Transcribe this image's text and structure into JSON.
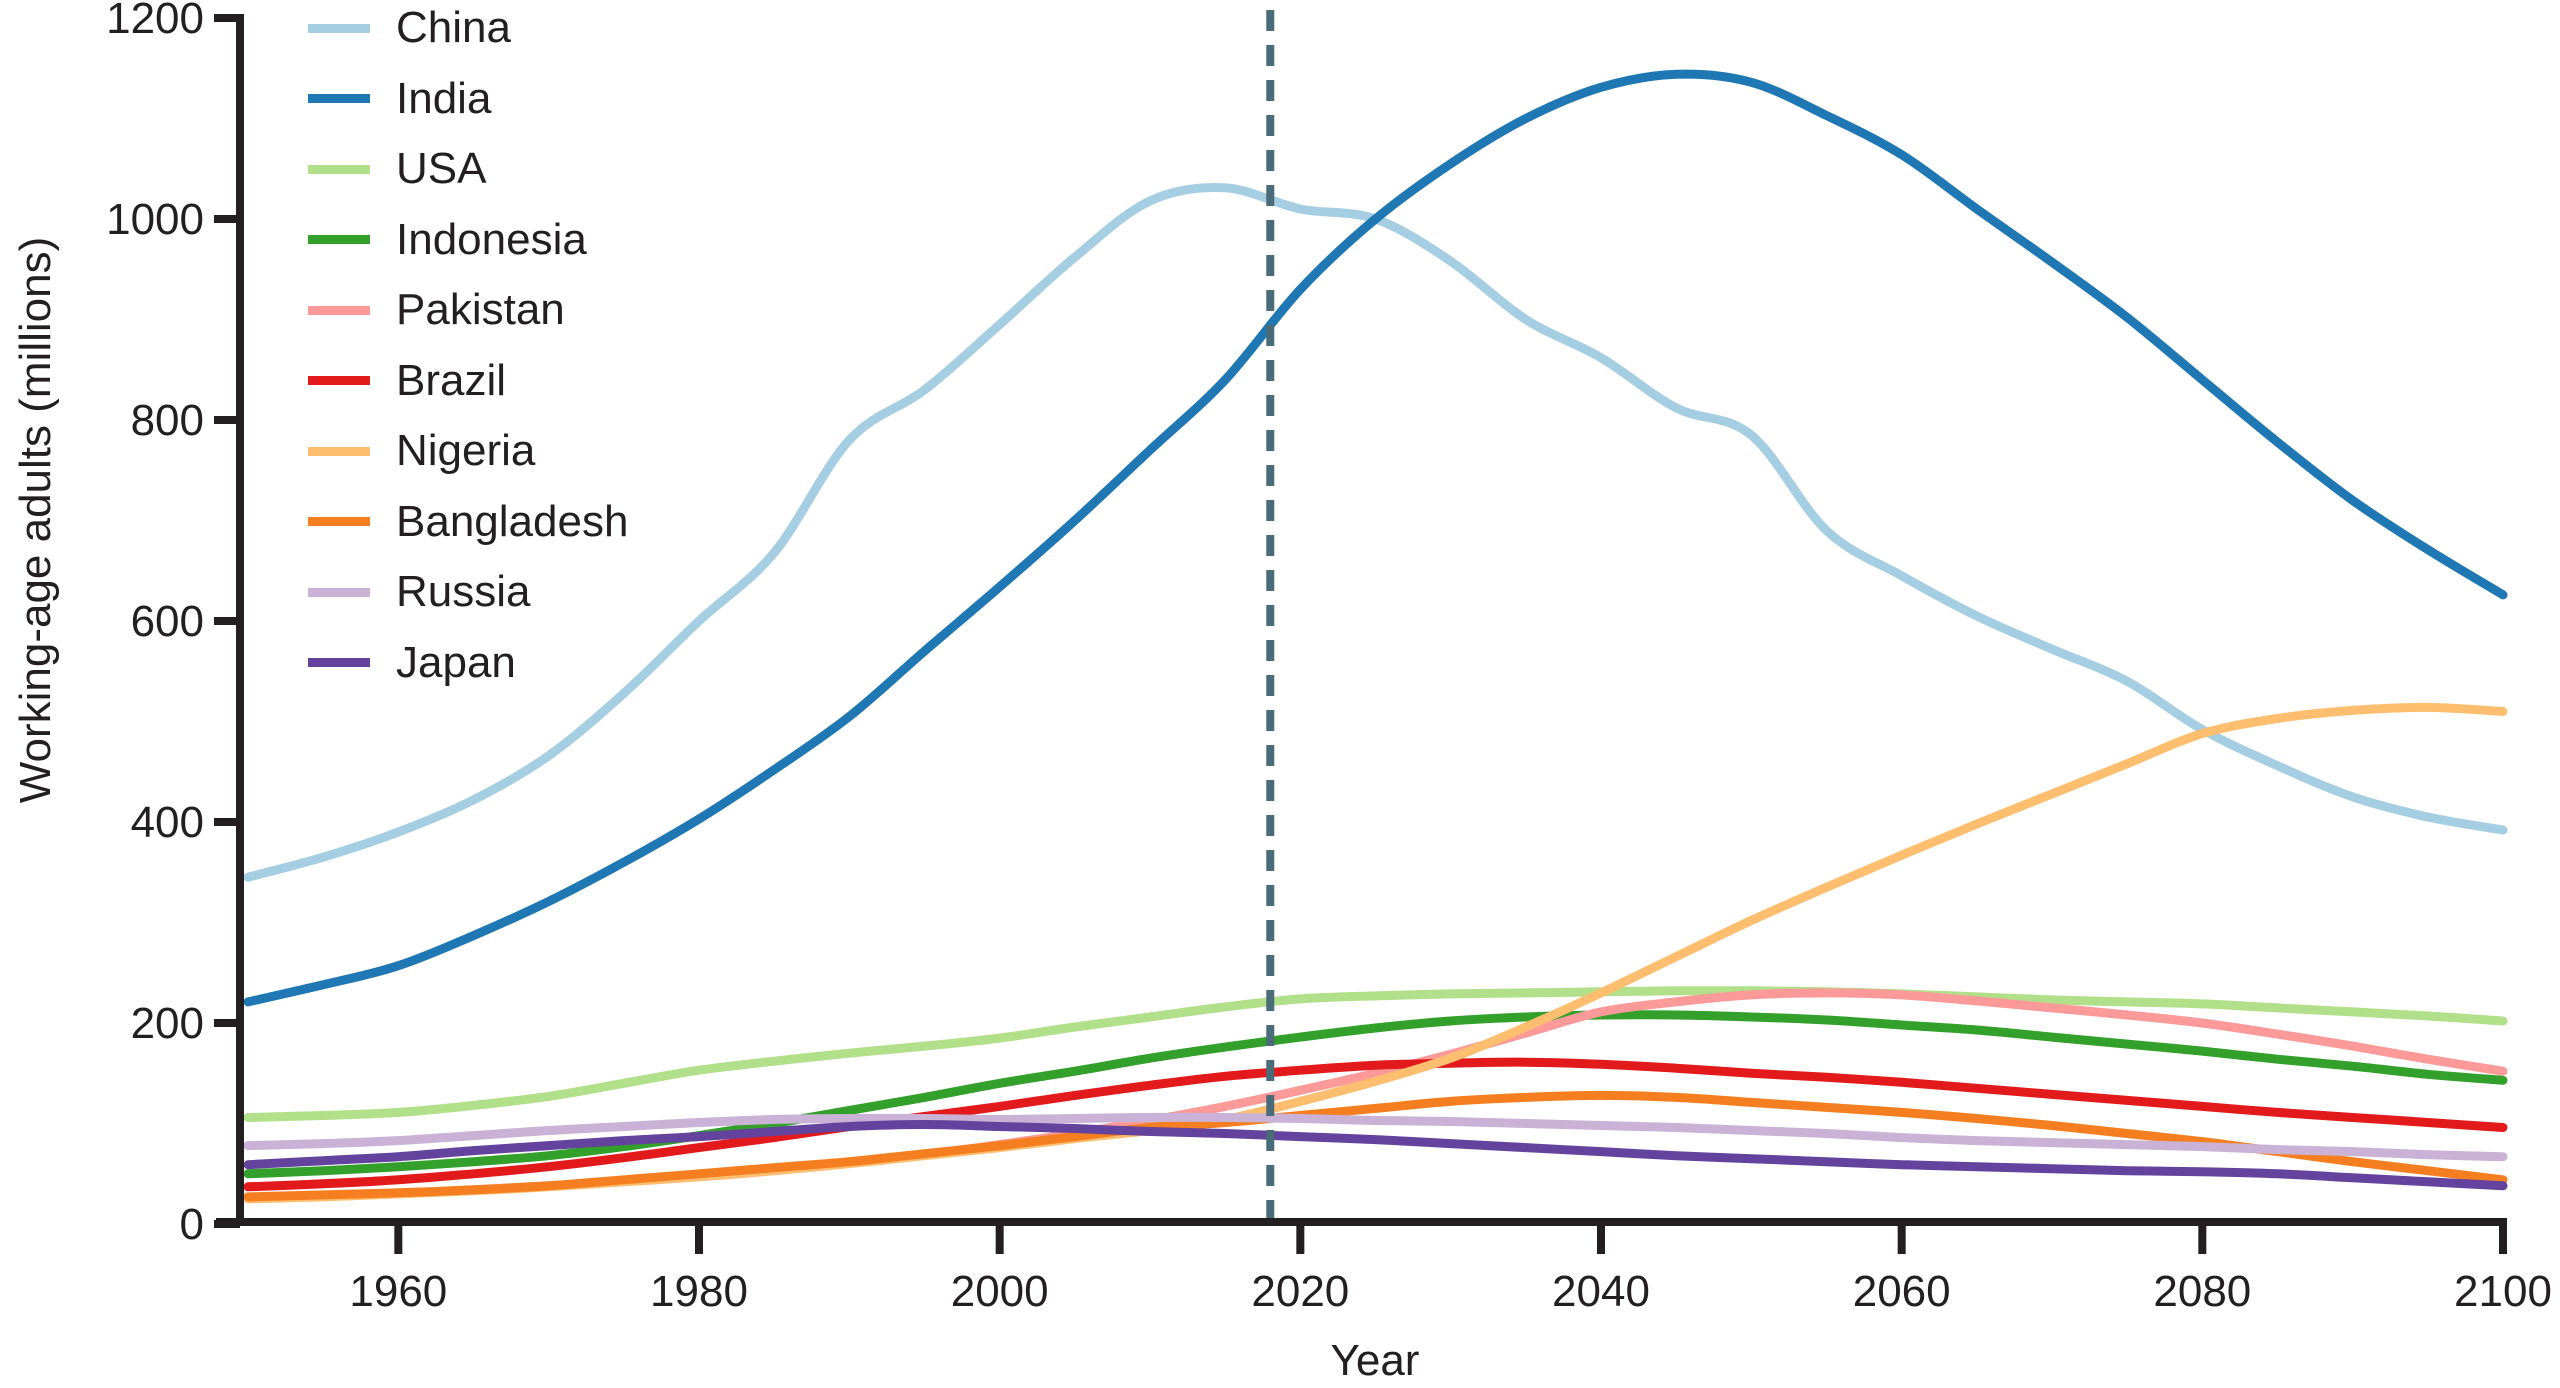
{
  "figure": {
    "background": "#ffffff",
    "axis_color": "#231f20",
    "text_color": "#231f20"
  },
  "chart_data": {
    "type": "line",
    "title": "",
    "xlabel": "Year",
    "ylabel": "Working-age adults (millions)",
    "x_start": 1950,
    "x_step": 5,
    "xlim": [
      1950,
      2100
    ],
    "ylim": [
      0,
      1200
    ],
    "xticks": [
      1960,
      1980,
      2000,
      2020,
      2040,
      2060,
      2080,
      2100
    ],
    "yticks": [
      0,
      200,
      400,
      600,
      800,
      1000,
      1200
    ],
    "grid": false,
    "legend_position": "top-left",
    "annotation": {
      "type": "vline",
      "x": 2018,
      "style": "dashed",
      "color": "#4a6b78"
    },
    "series": [
      {
        "name": "China",
        "color": "#a6cee3",
        "values": [
          345,
          365,
          390,
          422,
          466,
          528,
          600,
          668,
          780,
          830,
          895,
          962,
          1018,
          1031,
          1010,
          1000,
          958,
          900,
          862,
          812,
          785,
          690,
          645,
          605,
          572,
          540,
          492,
          456,
          425,
          405,
          392
        ]
      },
      {
        "name": "India",
        "color": "#1f78b4",
        "values": [
          221,
          238,
          257,
          287,
          321,
          360,
          403,
          452,
          505,
          570,
          634,
          700,
          770,
          840,
          930,
          1000,
          1055,
          1100,
          1131,
          1144,
          1136,
          1103,
          1064,
          1010,
          957,
          902,
          840,
          778,
          720,
          671,
          626
        ]
      },
      {
        "name": "USA",
        "color": "#b2df8a",
        "values": [
          106,
          108,
          111,
          118,
          127,
          140,
          153,
          162,
          170,
          177,
          185,
          196,
          206,
          216,
          224,
          227,
          229,
          230,
          231,
          232,
          232,
          231,
          229,
          226,
          223,
          221,
          219,
          215,
          211,
          207,
          202
        ]
      },
      {
        "name": "Indonesia",
        "color": "#33a02c",
        "values": [
          50,
          53,
          57,
          62,
          68,
          77,
          88,
          100,
          113,
          126,
          140,
          152,
          165,
          176,
          186,
          195,
          202,
          206,
          208,
          208,
          206,
          203,
          198,
          193,
          186,
          179,
          172,
          164,
          157,
          149,
          143
        ]
      },
      {
        "name": "Pakistan",
        "color": "#fb9a99",
        "values": [
          26,
          28,
          30,
          34,
          38,
          42,
          47,
          53,
          61,
          69,
          79,
          90,
          103,
          117,
          133,
          150,
          169,
          190,
          211,
          221,
          228,
          230,
          228,
          222,
          215,
          208,
          200,
          189,
          177,
          164,
          152
        ]
      },
      {
        "name": "Brazil",
        "color": "#e31a1c",
        "values": [
          37,
          40,
          44,
          50,
          57,
          66,
          76,
          86,
          97,
          107,
          117,
          128,
          138,
          147,
          153,
          158,
          160,
          161,
          159,
          155,
          150,
          146,
          141,
          135,
          129,
          123,
          117,
          111,
          106,
          101,
          96
        ]
      },
      {
        "name": "Nigeria",
        "color": "#fdbf6f",
        "values": [
          25,
          27,
          30,
          33,
          37,
          42,
          47,
          53,
          60,
          68,
          76,
          85,
          93,
          104,
          122,
          142,
          165,
          196,
          230,
          266,
          302,
          335,
          367,
          398,
          428,
          458,
          488,
          503,
          511,
          514,
          510
        ]
      },
      {
        "name": "Bangladesh",
        "color": "#f57f20",
        "values": [
          27,
          29,
          31,
          34,
          38,
          44,
          50,
          56,
          62,
          70,
          78,
          87,
          96,
          101,
          108,
          115,
          122,
          126,
          128,
          126,
          121,
          116,
          111,
          105,
          98,
          90,
          82,
          72,
          62,
          53,
          44
        ]
      },
      {
        "name": "Russia",
        "color": "#cab2d6",
        "values": [
          78,
          80,
          83,
          88,
          93,
          97,
          101,
          104,
          105,
          105,
          104,
          105,
          106,
          106,
          105,
          103,
          102,
          100,
          98,
          96,
          93,
          90,
          86,
          83,
          81,
          79,
          77,
          74,
          72,
          69,
          67
        ]
      },
      {
        "name": "Japan",
        "color": "#63439d",
        "values": [
          59,
          63,
          67,
          73,
          78,
          83,
          87,
          92,
          97,
          99,
          97,
          95,
          92,
          90,
          87,
          84,
          80,
          76,
          72,
          68,
          65,
          62,
          59,
          57,
          55,
          53,
          52,
          50,
          46,
          42,
          38
        ]
      }
    ]
  }
}
